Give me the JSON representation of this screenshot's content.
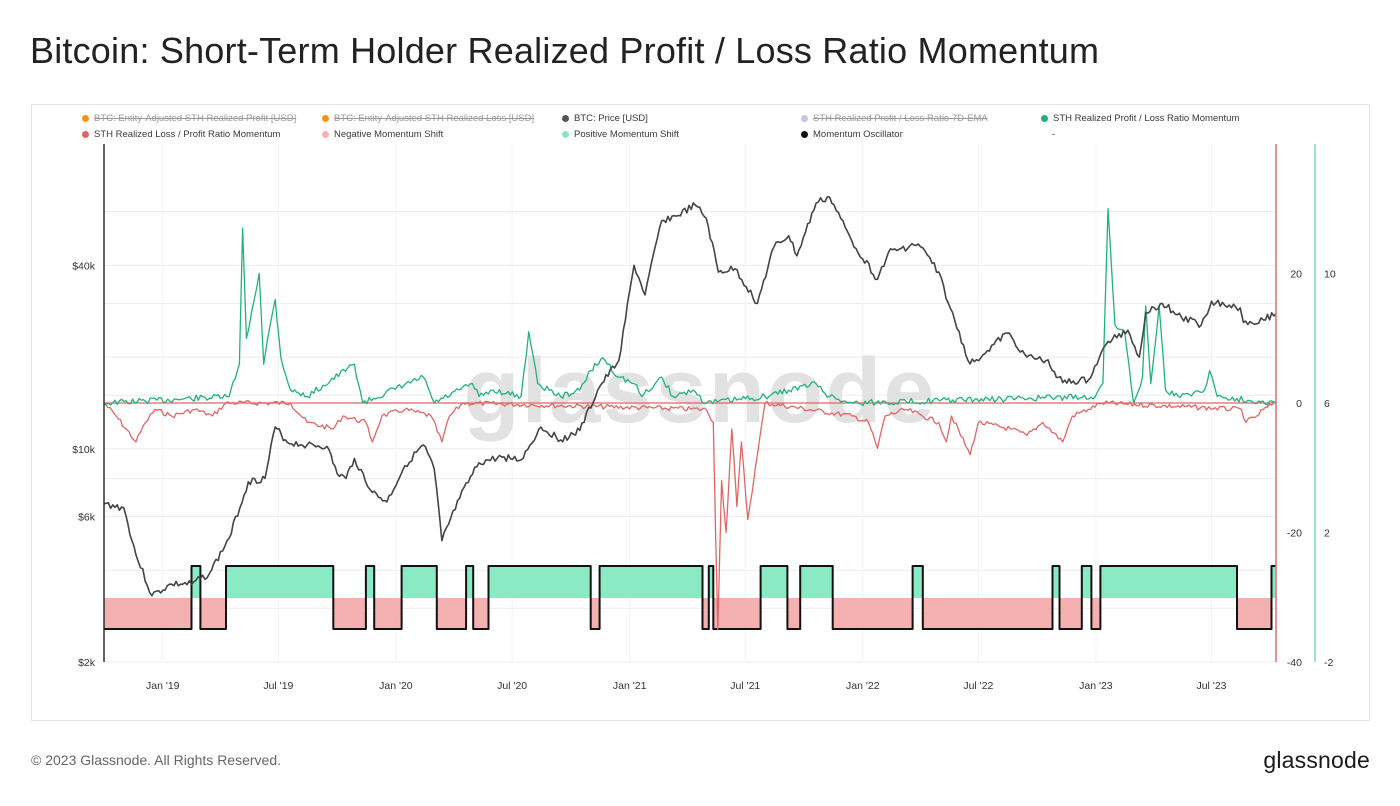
{
  "page": {
    "title": "Bitcoin: Short-Term Holder Realized Profit / Loss Ratio Momentum",
    "copyright": "© 2023 Glassnode. All Rights Reserved.",
    "logo": "glassnode",
    "watermark": "glassnode"
  },
  "legend": [
    {
      "label": "BTC: Entity-Adjusted STH Realized Profit [USD]",
      "color": "#f7931a",
      "disabled": true
    },
    {
      "label": "BTC: Entity-Adjusted STH Realized Loss [USD]",
      "color": "#f7931a",
      "disabled": true
    },
    {
      "label": "BTC: Price [USD]",
      "color": "#555555",
      "disabled": false
    },
    {
      "label": "STH Realized Profit / Loss Ratio 7D-EMA",
      "color": "#c9c2e6",
      "disabled": true
    },
    {
      "label": "STH Realized Profit / Loss Ratio Momentum",
      "color": "#22b07a",
      "disabled": false
    },
    {
      "label": "STH Realized Loss / Profit Ratio Momentum",
      "color": "#e06666",
      "disabled": false
    },
    {
      "label": "Negative Momentum Shift",
      "color": "#f4b3b3",
      "disabled": false
    },
    {
      "label": "Positive Momentum Shift",
      "color": "#8fe5c3",
      "disabled": false
    },
    {
      "label": "Momentum Oscillator",
      "color": "#111111",
      "disabled": false
    },
    {
      "label": "-",
      "color": "",
      "disabled": false
    }
  ],
  "colors": {
    "price": "#444444",
    "profit_momentum": "#1fb37a",
    "loss_momentum": "#e06666",
    "negative_fill": "#f4a9a9",
    "positive_fill": "#7de8c0",
    "oscillator": "#111111",
    "right_axis_red": "#e57373",
    "right_axis_green": "#7ddfb9",
    "grid": "#ececec"
  },
  "chart_data": {
    "type": "line",
    "x_axis": {
      "start": "2018-10-01",
      "end": "2023-10-10",
      "tick_labels": [
        "Jan '19",
        "Jul '19",
        "Jan '20",
        "Jul '20",
        "Jan '21",
        "Jul '21",
        "Jan '22",
        "Jul '22",
        "Jan '23",
        "Jul '23"
      ],
      "tick_dates": [
        "2019-01-01",
        "2019-07-01",
        "2020-01-01",
        "2020-07-01",
        "2021-01-01",
        "2021-07-01",
        "2022-01-01",
        "2022-07-01",
        "2023-01-01",
        "2023-07-01"
      ]
    },
    "left_axis": {
      "scale": "log",
      "range": [
        2000,
        100000
      ],
      "tick_labels": [
        "$2k",
        "$6k",
        "$10k",
        "$40k"
      ],
      "tick_values": [
        2000,
        6000,
        10000,
        40000
      ]
    },
    "right_axis_1": {
      "range": [
        -40,
        40
      ],
      "tick_labels": [
        "-40",
        "-20",
        "0",
        "20"
      ],
      "tick_values": [
        -40,
        -20,
        0,
        20
      ]
    },
    "right_axis_2": {
      "range": [
        -2,
        14
      ],
      "tick_labels": [
        "-2",
        "2",
        "6",
        "10"
      ],
      "tick_values": [
        -2,
        2,
        6,
        10
      ]
    },
    "series": [
      {
        "name": "BTC: Price [USD]",
        "axis": "left",
        "points": [
          [
            "2018-10-01",
            6600
          ],
          [
            "2018-11-01",
            6400
          ],
          [
            "2018-11-20",
            4500
          ],
          [
            "2018-12-15",
            3300
          ],
          [
            "2019-01-15",
            3600
          ],
          [
            "2019-02-15",
            3600
          ],
          [
            "2019-03-15",
            3900
          ],
          [
            "2019-04-15",
            5100
          ],
          [
            "2019-05-15",
            7800
          ],
          [
            "2019-06-10",
            8000
          ],
          [
            "2019-06-26",
            11800
          ],
          [
            "2019-07-15",
            10500
          ],
          [
            "2019-08-15",
            10300
          ],
          [
            "2019-09-15",
            10200
          ],
          [
            "2019-10-01",
            8300
          ],
          [
            "2019-10-15",
            8000
          ],
          [
            "2019-10-28",
            9300
          ],
          [
            "2019-11-25",
            7200
          ],
          [
            "2019-12-18",
            6700
          ],
          [
            "2020-01-15",
            8800
          ],
          [
            "2020-02-13",
            10300
          ],
          [
            "2020-03-01",
            8600
          ],
          [
            "2020-03-13",
            5000
          ],
          [
            "2020-04-10",
            6900
          ],
          [
            "2020-05-10",
            9000
          ],
          [
            "2020-06-15",
            9400
          ],
          [
            "2020-07-15",
            9200
          ],
          [
            "2020-08-15",
            11800
          ],
          [
            "2020-09-15",
            10700
          ],
          [
            "2020-10-15",
            11500
          ],
          [
            "2020-11-15",
            16000
          ],
          [
            "2020-12-15",
            19500
          ],
          [
            "2021-01-08",
            40000
          ],
          [
            "2021-01-25",
            32000
          ],
          [
            "2021-02-20",
            56000
          ],
          [
            "2021-03-15",
            58000
          ],
          [
            "2021-04-14",
            63000
          ],
          [
            "2021-05-01",
            57000
          ],
          [
            "2021-05-20",
            38000
          ],
          [
            "2021-06-15",
            39000
          ],
          [
            "2021-07-20",
            30000
          ],
          [
            "2021-08-15",
            46000
          ],
          [
            "2021-09-07",
            50000
          ],
          [
            "2021-09-20",
            43000
          ],
          [
            "2021-10-20",
            64000
          ],
          [
            "2021-11-10",
            67000
          ],
          [
            "2021-12-15",
            48000
          ],
          [
            "2022-01-24",
            36000
          ],
          [
            "2022-02-10",
            44000
          ],
          [
            "2022-03-29",
            47000
          ],
          [
            "2022-04-30",
            38000
          ],
          [
            "2022-05-15",
            30000
          ],
          [
            "2022-06-18",
            19000
          ],
          [
            "2022-07-15",
            21000
          ],
          [
            "2022-08-15",
            24000
          ],
          [
            "2022-09-15",
            20000
          ],
          [
            "2022-10-15",
            19500
          ],
          [
            "2022-11-10",
            16500
          ],
          [
            "2022-12-20",
            16800
          ],
          [
            "2023-01-20",
            22500
          ],
          [
            "2023-02-20",
            24500
          ],
          [
            "2023-03-10",
            20000
          ],
          [
            "2023-03-20",
            28000
          ],
          [
            "2023-04-15",
            30000
          ],
          [
            "2023-05-15",
            27000
          ],
          [
            "2023-06-15",
            25500
          ],
          [
            "2023-07-01",
            30500
          ],
          [
            "2023-08-15",
            29000
          ],
          [
            "2023-08-20",
            26000
          ],
          [
            "2023-09-20",
            26500
          ],
          [
            "2023-10-10",
            27800
          ]
        ]
      },
      {
        "name": "STH Realized Profit / Loss Ratio Momentum",
        "axis": "right_1",
        "points": [
          [
            "2018-10-01",
            0
          ],
          [
            "2019-04-15",
            1
          ],
          [
            "2019-05-01",
            6
          ],
          [
            "2019-05-06",
            27
          ],
          [
            "2019-05-12",
            10
          ],
          [
            "2019-05-20",
            14
          ],
          [
            "2019-06-01",
            20
          ],
          [
            "2019-06-08",
            6
          ],
          [
            "2019-06-18",
            12
          ],
          [
            "2019-06-26",
            16
          ],
          [
            "2019-07-05",
            7
          ],
          [
            "2019-07-20",
            2
          ],
          [
            "2019-08-15",
            1
          ],
          [
            "2019-10-28",
            6
          ],
          [
            "2019-11-10",
            0
          ],
          [
            "2020-02-13",
            4
          ],
          [
            "2020-03-01",
            0
          ],
          [
            "2020-04-30",
            3
          ],
          [
            "2020-05-10",
            1
          ],
          [
            "2020-06-01",
            2
          ],
          [
            "2020-07-15",
            1
          ],
          [
            "2020-07-27",
            11
          ],
          [
            "2020-08-10",
            3
          ],
          [
            "2020-09-15",
            1
          ],
          [
            "2020-10-15",
            2
          ],
          [
            "2020-11-01",
            5
          ],
          [
            "2020-11-20",
            7
          ],
          [
            "2020-12-15",
            4
          ],
          [
            "2021-01-08",
            3
          ],
          [
            "2021-01-20",
            1
          ],
          [
            "2021-02-10",
            3
          ],
          [
            "2021-02-20",
            4
          ],
          [
            "2021-03-10",
            1
          ],
          [
            "2021-04-10",
            2
          ],
          [
            "2021-05-01",
            0
          ],
          [
            "2021-08-01",
            1
          ],
          [
            "2021-09-07",
            2
          ],
          [
            "2021-10-20",
            3
          ],
          [
            "2021-11-10",
            1
          ],
          [
            "2021-12-15",
            0
          ],
          [
            "2022-12-31",
            1
          ],
          [
            "2023-01-12",
            3
          ],
          [
            "2023-01-20",
            30
          ],
          [
            "2023-01-31",
            12
          ],
          [
            "2023-02-15",
            11
          ],
          [
            "2023-03-01",
            0
          ],
          [
            "2023-03-15",
            4
          ],
          [
            "2023-03-20",
            15
          ],
          [
            "2023-03-28",
            3
          ],
          [
            "2023-04-10",
            15
          ],
          [
            "2023-04-20",
            2
          ],
          [
            "2023-05-10",
            1
          ],
          [
            "2023-06-20",
            2
          ],
          [
            "2023-06-28",
            5
          ],
          [
            "2023-07-10",
            1
          ],
          [
            "2023-10-10",
            0
          ]
        ]
      },
      {
        "name": "STH Realized Loss / Profit Ratio Momentum",
        "axis": "right_1",
        "points": [
          [
            "2018-10-01",
            0
          ],
          [
            "2018-10-20",
            -2
          ],
          [
            "2018-11-20",
            -6
          ],
          [
            "2018-12-05",
            -3
          ],
          [
            "2018-12-20",
            -1
          ],
          [
            "2019-01-15",
            -2
          ],
          [
            "2019-02-20",
            -1
          ],
          [
            "2019-03-20",
            -2
          ],
          [
            "2019-04-10",
            0
          ],
          [
            "2019-07-20",
            0
          ],
          [
            "2019-08-15",
            -3
          ],
          [
            "2019-09-25",
            -4
          ],
          [
            "2019-10-10",
            -2
          ],
          [
            "2019-11-15",
            -3
          ],
          [
            "2019-11-25",
            -6
          ],
          [
            "2019-12-10",
            -2
          ],
          [
            "2020-01-15",
            -1
          ],
          [
            "2020-02-25",
            -2
          ],
          [
            "2020-03-13",
            -6
          ],
          [
            "2020-03-25",
            -2
          ],
          [
            "2020-04-15",
            0
          ],
          [
            "2021-05-01",
            -1
          ],
          [
            "2021-05-12",
            -3
          ],
          [
            "2021-05-19",
            -35
          ],
          [
            "2021-05-25",
            -12
          ],
          [
            "2021-06-01",
            -20
          ],
          [
            "2021-06-10",
            -4
          ],
          [
            "2021-06-18",
            -16
          ],
          [
            "2021-06-25",
            -6
          ],
          [
            "2021-07-05",
            -18
          ],
          [
            "2021-07-20",
            -8
          ],
          [
            "2021-08-01",
            0
          ],
          [
            "2021-12-15",
            -2
          ],
          [
            "2022-01-10",
            -3
          ],
          [
            "2022-01-24",
            -7
          ],
          [
            "2022-02-05",
            -2
          ],
          [
            "2022-03-10",
            -1
          ],
          [
            "2022-04-30",
            -3
          ],
          [
            "2022-05-12",
            -6
          ],
          [
            "2022-05-20",
            -2
          ],
          [
            "2022-06-18",
            -8
          ],
          [
            "2022-07-01",
            -3
          ],
          [
            "2022-08-20",
            -4
          ],
          [
            "2022-09-15",
            -5
          ],
          [
            "2022-10-10",
            -3
          ],
          [
            "2022-11-10",
            -6
          ],
          [
            "2022-11-25",
            -2
          ],
          [
            "2022-12-20",
            -1
          ],
          [
            "2023-01-10",
            0
          ],
          [
            "2023-08-17",
            -1
          ],
          [
            "2023-08-24",
            -3
          ],
          [
            "2023-09-10",
            -2
          ],
          [
            "2023-09-20",
            -1
          ],
          [
            "2023-10-10",
            0
          ]
        ]
      },
      {
        "name": "Momentum Oscillator",
        "axis": "right_2",
        "state_intervals": [
          {
            "from": "2018-10-01",
            "to": "2019-02-15",
            "state": "negative"
          },
          {
            "from": "2019-02-15",
            "to": "2019-03-01",
            "state": "positive"
          },
          {
            "from": "2019-03-01",
            "to": "2019-04-10",
            "state": "negative"
          },
          {
            "from": "2019-04-10",
            "to": "2019-09-25",
            "state": "positive"
          },
          {
            "from": "2019-09-25",
            "to": "2019-11-15",
            "state": "negative"
          },
          {
            "from": "2019-11-15",
            "to": "2019-11-28",
            "state": "positive"
          },
          {
            "from": "2019-11-28",
            "to": "2020-01-10",
            "state": "negative"
          },
          {
            "from": "2020-01-10",
            "to": "2020-03-05",
            "state": "positive"
          },
          {
            "from": "2020-03-05",
            "to": "2020-04-20",
            "state": "negative"
          },
          {
            "from": "2020-04-20",
            "to": "2020-05-01",
            "state": "positive"
          },
          {
            "from": "2020-05-01",
            "to": "2020-05-25",
            "state": "negative"
          },
          {
            "from": "2020-05-25",
            "to": "2020-11-01",
            "state": "positive"
          },
          {
            "from": "2020-11-01",
            "to": "2020-11-15",
            "state": "negative"
          },
          {
            "from": "2020-11-15",
            "to": "2021-04-25",
            "state": "positive"
          },
          {
            "from": "2021-04-25",
            "to": "2021-05-05",
            "state": "negative"
          },
          {
            "from": "2021-05-05",
            "to": "2021-05-12",
            "state": "positive"
          },
          {
            "from": "2021-05-12",
            "to": "2021-07-25",
            "state": "negative"
          },
          {
            "from": "2021-07-25",
            "to": "2021-09-05",
            "state": "positive"
          },
          {
            "from": "2021-09-05",
            "to": "2021-09-25",
            "state": "negative"
          },
          {
            "from": "2021-09-25",
            "to": "2021-11-15",
            "state": "positive"
          },
          {
            "from": "2021-11-15",
            "to": "2022-03-20",
            "state": "negative"
          },
          {
            "from": "2022-03-20",
            "to": "2022-04-05",
            "state": "positive"
          },
          {
            "from": "2022-04-05",
            "to": "2022-10-25",
            "state": "negative"
          },
          {
            "from": "2022-10-25",
            "to": "2022-11-05",
            "state": "positive"
          },
          {
            "from": "2022-11-05",
            "to": "2022-12-10",
            "state": "negative"
          },
          {
            "from": "2022-12-10",
            "to": "2022-12-25",
            "state": "positive"
          },
          {
            "from": "2022-12-25",
            "to": "2023-01-08",
            "state": "negative"
          },
          {
            "from": "2023-01-08",
            "to": "2023-08-10",
            "state": "positive"
          },
          {
            "from": "2023-08-10",
            "to": "2023-10-03",
            "state": "negative"
          },
          {
            "from": "2023-10-03",
            "to": "2023-10-10",
            "state": "positive"
          }
        ]
      }
    ]
  }
}
